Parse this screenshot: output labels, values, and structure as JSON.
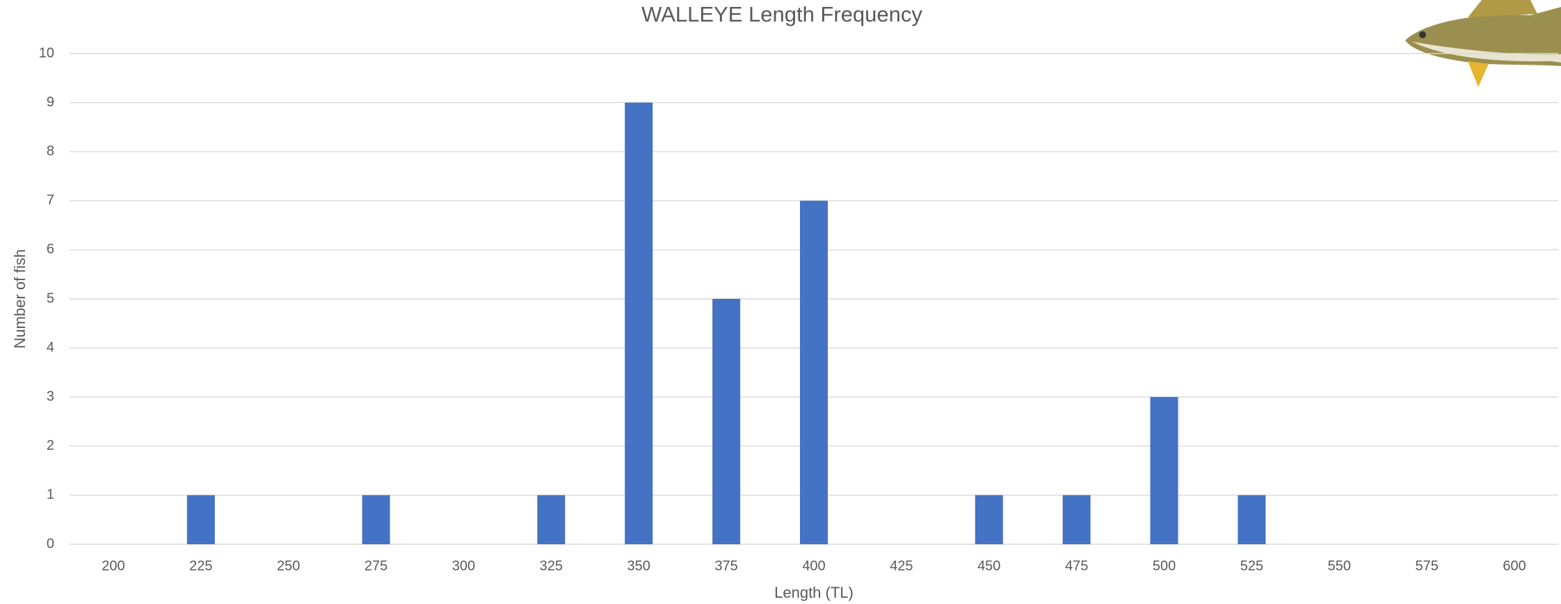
{
  "chart_data": {
    "type": "bar",
    "title": "WALLEYE Length Frequency",
    "x_label": "Length (TL)",
    "y_label": "Number of fish",
    "categories": [
      "200",
      "225",
      "250",
      "275",
      "300",
      "325",
      "350",
      "375",
      "400",
      "425",
      "450",
      "475",
      "500",
      "525",
      "550",
      "575",
      "600"
    ],
    "values": [
      0,
      1,
      0,
      1,
      0,
      1,
      9,
      5,
      7,
      0,
      1,
      1,
      3,
      1,
      0,
      0,
      0
    ],
    "color": "#4472c4",
    "ylim": [
      0,
      10
    ],
    "yticks": [
      0,
      1,
      2,
      3,
      4,
      5,
      6,
      7,
      8,
      9,
      10
    ],
    "grid": true
  }
}
